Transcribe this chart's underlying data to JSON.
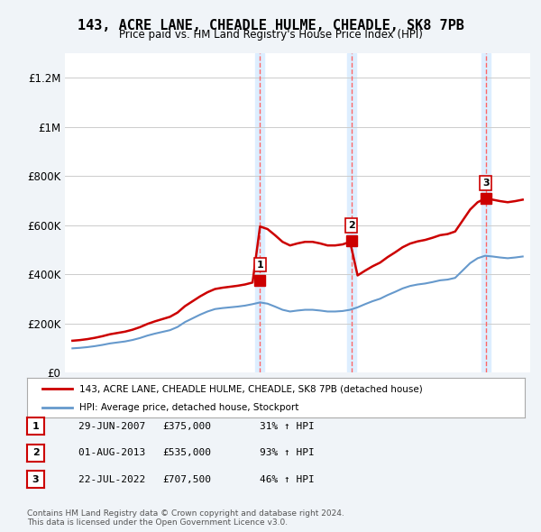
{
  "title": "143, ACRE LANE, CHEADLE HULME, CHEADLE, SK8 7PB",
  "subtitle": "Price paid vs. HM Land Registry's House Price Index (HPI)",
  "ylim": [
    0,
    1300000
  ],
  "yticks": [
    0,
    200000,
    400000,
    600000,
    800000,
    1000000,
    1200000
  ],
  "ytick_labels": [
    "£0",
    "£200K",
    "£400K",
    "£600K",
    "£800K",
    "£1M",
    "£1.2M"
  ],
  "house_color": "#cc0000",
  "hpi_color": "#6699cc",
  "sale_marker_color": "#cc0000",
  "vline_color": "#ff6666",
  "vline_style": "dashed",
  "highlight_color": "#ddeeff",
  "sales": [
    {
      "date_num": 2007.49,
      "price": 375000,
      "label": "1"
    },
    {
      "date_num": 2013.58,
      "price": 535000,
      "label": "2"
    },
    {
      "date_num": 2022.55,
      "price": 707500,
      "label": "3"
    }
  ],
  "legend_house": "143, ACRE LANE, CHEADLE HULME, CHEADLE, SK8 7PB (detached house)",
  "legend_hpi": "HPI: Average price, detached house, Stockport",
  "table": [
    {
      "num": "1",
      "date": "29-JUN-2007",
      "price": "£375,000",
      "change": "31% ↑ HPI"
    },
    {
      "num": "2",
      "date": "01-AUG-2013",
      "price": "£535,000",
      "change": "93% ↑ HPI"
    },
    {
      "num": "3",
      "date": "22-JUL-2022",
      "price": "£707,500",
      "change": "46% ↑ HPI"
    }
  ],
  "footer": "Contains HM Land Registry data © Crown copyright and database right 2024.\nThis data is licensed under the Open Government Licence v3.0.",
  "background_color": "#f0f4f8",
  "plot_bg_color": "#ffffff"
}
